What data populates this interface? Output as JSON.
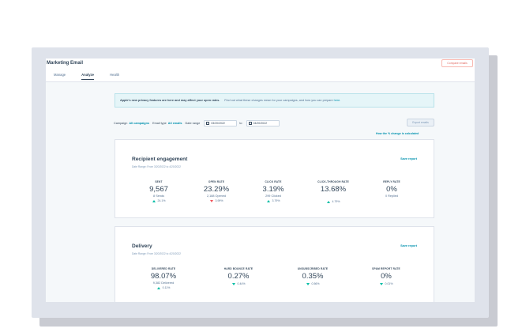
{
  "app": {
    "title": "Marketing Email",
    "compare_button": "Compare emails",
    "tabs": [
      "Manage",
      "Analyze",
      "Health"
    ]
  },
  "banner": {
    "bold": "Apple's new privacy features are here and may affect your open rates.",
    "text": "Find out what these changes mean for your campaigns, and how you can prepare",
    "link": "here."
  },
  "filters": {
    "campaign_label": "Campaign",
    "campaign_value": "All campaigns",
    "email_type_label": "Email type",
    "email_type_value": "All emails",
    "date_range_label": "Date range",
    "date_from": "03/20/2022",
    "to_label": "to",
    "date_to": "04/20/2022",
    "export_button": "Export emails",
    "how_link": "How the % change is calculated"
  },
  "cards": [
    {
      "title": "Recipient engagement",
      "date_range": "Date Range: From 3/20/2022 to 4/20/2022",
      "save": "Save report",
      "metrics": [
        {
          "label": "SENT",
          "value": "9,567",
          "sub": "8 Sends",
          "change": "24.1%",
          "dir": "up"
        },
        {
          "label": "OPEN RATE",
          "value": "23.29%",
          "sub": "2,188 Opened",
          "change": "3.99%",
          "dir": "down"
        },
        {
          "label": "CLICK RATE",
          "value": "3.19%",
          "sub": "299 Clicked",
          "change": "3.79%",
          "dir": "up"
        },
        {
          "label": "CLICK-THROUGH RATE",
          "value": "13.68%",
          "sub": "",
          "change": "4.79%",
          "dir": "up"
        },
        {
          "label": "REPLY RATE",
          "value": "0%",
          "sub": "0 Replied",
          "change": "",
          "dir": ""
        }
      ]
    },
    {
      "title": "Delivery",
      "date_range": "Date Range: From 3/20/2022 to 4/20/2022",
      "save": "Save report",
      "metrics": [
        {
          "label": "DELIVERED RATE",
          "value": "98.07%",
          "sub": "9,382 Delivered",
          "change": "0.11%",
          "dir": "up"
        },
        {
          "label": "HARD BOUNCE RATE",
          "value": "0.27%",
          "sub": "",
          "change": "0.44%",
          "dir": "down-good"
        },
        {
          "label": "UNSUBSCRIBED RATE",
          "value": "0.35%",
          "sub": "",
          "change": "0.56%",
          "dir": "down-good"
        },
        {
          "label": "SPAM REPORT RATE",
          "value": "0%",
          "sub": "",
          "change": "0.01%",
          "dir": "down-good"
        }
      ]
    }
  ]
}
